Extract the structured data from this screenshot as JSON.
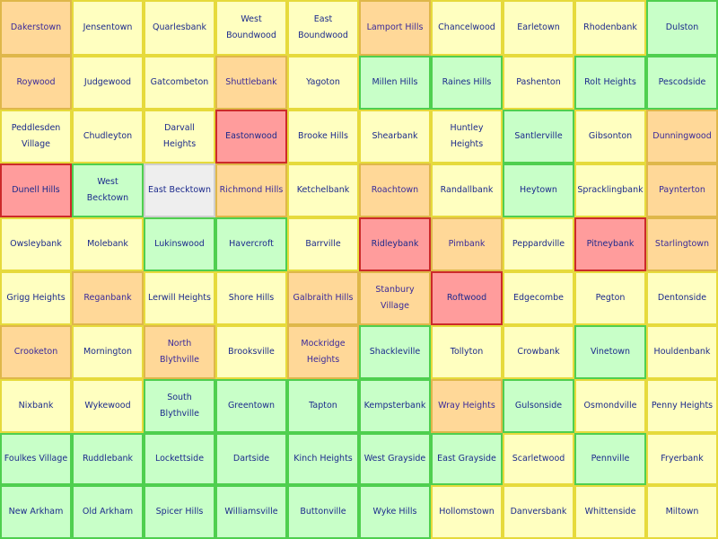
{
  "board": {
    "rows": [
      [
        {
          "name": "Dakerstown",
          "status": "orange"
        },
        {
          "name": "Jensentown",
          "status": "yellow"
        },
        {
          "name": "Quarlesbank",
          "status": "yellow"
        },
        {
          "name": "West Boundwood",
          "status": "yellow"
        },
        {
          "name": "East Boundwood",
          "status": "yellow"
        },
        {
          "name": "Lamport Hills",
          "status": "orange"
        },
        {
          "name": "Chancelwood",
          "status": "yellow"
        },
        {
          "name": "Earletown",
          "status": "yellow"
        },
        {
          "name": "Rhodenbank",
          "status": "yellow"
        },
        {
          "name": "Dulston",
          "status": "green"
        }
      ],
      [
        {
          "name": "Roywood",
          "status": "orange"
        },
        {
          "name": "Judgewood",
          "status": "yellow"
        },
        {
          "name": "Gatcombeton",
          "status": "yellow"
        },
        {
          "name": "Shuttlebank",
          "status": "orange"
        },
        {
          "name": "Yagoton",
          "status": "yellow"
        },
        {
          "name": "Millen Hills",
          "status": "green"
        },
        {
          "name": "Raines Hills",
          "status": "green"
        },
        {
          "name": "Pashenton",
          "status": "yellow"
        },
        {
          "name": "Rolt Heights",
          "status": "green"
        },
        {
          "name": "Pescodside",
          "status": "green"
        }
      ],
      [
        {
          "name": "Peddlesden Village",
          "status": "yellow"
        },
        {
          "name": "Chudleyton",
          "status": "yellow"
        },
        {
          "name": "Darvall Heights",
          "status": "yellow"
        },
        {
          "name": "Eastonwood",
          "status": "red"
        },
        {
          "name": "Brooke Hills",
          "status": "yellow"
        },
        {
          "name": "Shearbank",
          "status": "yellow"
        },
        {
          "name": "Huntley Heights",
          "status": "yellow"
        },
        {
          "name": "Santlerville",
          "status": "green"
        },
        {
          "name": "Gibsonton",
          "status": "yellow"
        },
        {
          "name": "Dunningwood",
          "status": "orange"
        }
      ],
      [
        {
          "name": "Dunell Hills",
          "status": "red"
        },
        {
          "name": "West Becktown",
          "status": "green"
        },
        {
          "name": "East Becktown",
          "status": "grey"
        },
        {
          "name": "Richmond Hills",
          "status": "orange"
        },
        {
          "name": "Ketchelbank",
          "status": "yellow"
        },
        {
          "name": "Roachtown",
          "status": "orange"
        },
        {
          "name": "Randallbank",
          "status": "yellow"
        },
        {
          "name": "Heytown",
          "status": "green"
        },
        {
          "name": "Spracklingbank",
          "status": "yellow"
        },
        {
          "name": "Paynterton",
          "status": "orange"
        }
      ],
      [
        {
          "name": "Owsleybank",
          "status": "yellow"
        },
        {
          "name": "Molebank",
          "status": "yellow"
        },
        {
          "name": "Lukinswood",
          "status": "green"
        },
        {
          "name": "Havercroft",
          "status": "green"
        },
        {
          "name": "Barrville",
          "status": "yellow"
        },
        {
          "name": "Ridleybank",
          "status": "red"
        },
        {
          "name": "Pimbank",
          "status": "orange"
        },
        {
          "name": "Peppardville",
          "status": "yellow"
        },
        {
          "name": "Pitneybank",
          "status": "red"
        },
        {
          "name": "Starlingtown",
          "status": "orange"
        }
      ],
      [
        {
          "name": "Grigg Heights",
          "status": "yellow"
        },
        {
          "name": "Reganbank",
          "status": "orange"
        },
        {
          "name": "Lerwill Heights",
          "status": "yellow"
        },
        {
          "name": "Shore Hills",
          "status": "yellow"
        },
        {
          "name": "Galbraith Hills",
          "status": "orange"
        },
        {
          "name": "Stanbury Village",
          "status": "orange"
        },
        {
          "name": "Roftwood",
          "status": "red"
        },
        {
          "name": "Edgecombe",
          "status": "yellow"
        },
        {
          "name": "Pegton",
          "status": "yellow"
        },
        {
          "name": "Dentonside",
          "status": "yellow"
        }
      ],
      [
        {
          "name": "Crooketon",
          "status": "orange"
        },
        {
          "name": "Mornington",
          "status": "yellow"
        },
        {
          "name": "North Blythville",
          "status": "orange"
        },
        {
          "name": "Brooksville",
          "status": "yellow"
        },
        {
          "name": "Mockridge Heights",
          "status": "orange"
        },
        {
          "name": "Shackleville",
          "status": "green"
        },
        {
          "name": "Tollyton",
          "status": "yellow"
        },
        {
          "name": "Crowbank",
          "status": "yellow"
        },
        {
          "name": "Vinetown",
          "status": "green"
        },
        {
          "name": "Houldenbank",
          "status": "yellow"
        }
      ],
      [
        {
          "name": "Nixbank",
          "status": "yellow"
        },
        {
          "name": "Wykewood",
          "status": "yellow"
        },
        {
          "name": "South Blythville",
          "status": "green"
        },
        {
          "name": "Greentown",
          "status": "green"
        },
        {
          "name": "Tapton",
          "status": "green"
        },
        {
          "name": "Kempsterbank",
          "status": "green"
        },
        {
          "name": "Wray Heights",
          "status": "orange"
        },
        {
          "name": "Gulsonside",
          "status": "green"
        },
        {
          "name": "Osmondville",
          "status": "yellow"
        },
        {
          "name": "Penny Heights",
          "status": "yellow"
        }
      ],
      [
        {
          "name": "Foulkes Village",
          "status": "green"
        },
        {
          "name": "Ruddlebank",
          "status": "green"
        },
        {
          "name": "Lockettside",
          "status": "green"
        },
        {
          "name": "Dartside",
          "status": "green"
        },
        {
          "name": "Kinch Heights",
          "status": "green"
        },
        {
          "name": "West Grayside",
          "status": "green"
        },
        {
          "name": "East Grayside",
          "status": "green"
        },
        {
          "name": "Scarletwood",
          "status": "yellow"
        },
        {
          "name": "Pennville",
          "status": "green"
        },
        {
          "name": "Fryerbank",
          "status": "yellow"
        }
      ],
      [
        {
          "name": "New Arkham",
          "status": "green"
        },
        {
          "name": "Old Arkham",
          "status": "green"
        },
        {
          "name": "Spicer Hills",
          "status": "green"
        },
        {
          "name": "Williamsville",
          "status": "green"
        },
        {
          "name": "Buttonville",
          "status": "green"
        },
        {
          "name": "Wyke Hills",
          "status": "green"
        },
        {
          "name": "Hollomstown",
          "status": "yellow"
        },
        {
          "name": "Danversbank",
          "status": "yellow"
        },
        {
          "name": "Whittenside",
          "status": "yellow"
        },
        {
          "name": "Miltown",
          "status": "yellow"
        }
      ]
    ]
  }
}
